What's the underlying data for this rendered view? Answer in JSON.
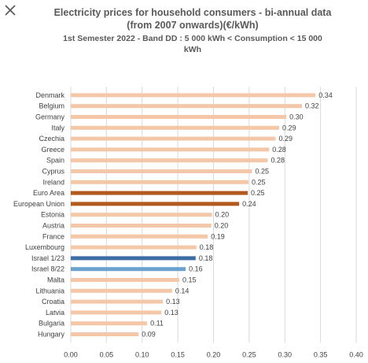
{
  "ui": {
    "close_icon": "close-icon"
  },
  "chart_data": {
    "type": "bar",
    "orientation": "horizontal",
    "title": "Electricity prices for household consumers - bi-annual data",
    "title_line2": "(from 2007 onwards)(€/kWh)",
    "subtitle": "1st Semester 2022  - Band DD : 5 000 kWh < Consumption < 15 000",
    "subtitle_line2": "kWh",
    "xlabel": "",
    "ylabel": "",
    "xlim": [
      0,
      0.4
    ],
    "x_ticks": [
      "0.00",
      "0.05",
      "0.10",
      "0.15",
      "0.20",
      "0.25",
      "0.30",
      "0.35",
      "0.40"
    ],
    "grid": true,
    "legend": "none",
    "categories": [
      "Denmark",
      "Belgium",
      "Germany",
      "Italy",
      "Czechia",
      "Greece",
      "Spain",
      "Cyprus",
      "Ireland",
      "Euro Area",
      "European Union",
      "Estonia",
      "Austria",
      "France",
      "Luxembourg",
      "Israel 1/23",
      "Israel 8/22",
      "Malta",
      "Lithuania",
      "Croatia",
      "Latvia",
      "Bulgaria",
      "Hungary"
    ],
    "values": [
      0.343,
      0.324,
      0.302,
      0.292,
      0.287,
      0.278,
      0.276,
      0.254,
      0.249,
      0.248,
      0.236,
      0.198,
      0.197,
      0.192,
      0.176,
      0.175,
      0.161,
      0.152,
      0.142,
      0.129,
      0.127,
      0.107,
      0.095
    ],
    "value_labels": [
      "0.34",
      "0.32",
      "0.30",
      "0.29",
      "0.29",
      "0.28",
      "0.28",
      "0.25",
      "0.25",
      "0.25",
      "0.24",
      "0.20",
      "0.20",
      "0.19",
      "0.18",
      "0.18",
      "0.16",
      "0.15",
      "0.14",
      "0.13",
      "0.13",
      "0.11",
      "0.09"
    ],
    "bar_colors": [
      "#f4c7a8",
      "#f4c7a8",
      "#f4c7a8",
      "#f4c7a8",
      "#f4c7a8",
      "#f4c7a8",
      "#f4c7a8",
      "#f4c7a8",
      "#f4c7a8",
      "#b35a1f",
      "#b35a1f",
      "#f4c7a8",
      "#f4c7a8",
      "#f4c7a8",
      "#f4c7a8",
      "#3a6ea5",
      "#6aa3d0",
      "#f4c7a8",
      "#f4c7a8",
      "#f4c7a8",
      "#f4c7a8",
      "#f4c7a8",
      "#f4c7a8"
    ]
  }
}
